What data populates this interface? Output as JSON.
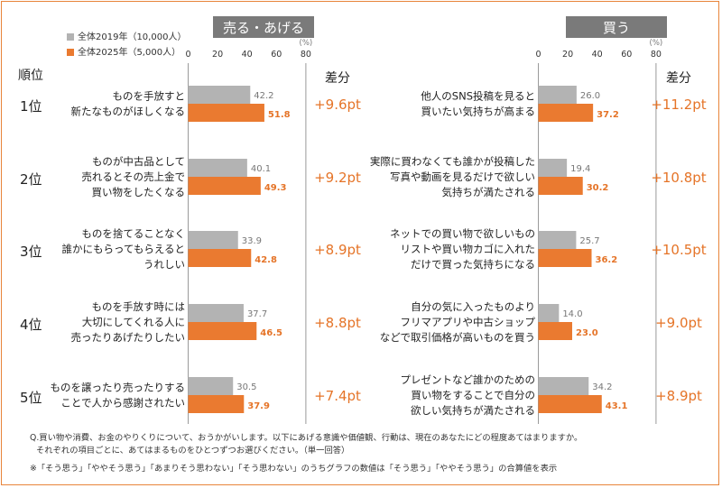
{
  "sections": [
    {
      "header": "売る・あげる",
      "axis_ticks": [
        "0",
        "20",
        "40",
        "60",
        "80"
      ],
      "unit": "(%)",
      "diff_header": "差分",
      "items": [
        {
          "label_lines": [
            "ものを手放すと",
            "新たなものがほしくなる"
          ],
          "gray": 42.2,
          "orange": 51.8,
          "diff": "+9.6pt"
        },
        {
          "label_lines": [
            "ものが中古品として",
            "売れるとその売上金で",
            "買い物をしたくなる"
          ],
          "gray": 40.1,
          "orange": 49.3,
          "diff": "+9.2pt"
        },
        {
          "label_lines": [
            "ものを捨てることなく",
            "誰かにもらってもらえると",
            "うれしい"
          ],
          "gray": 33.9,
          "orange": 42.8,
          "diff": "+8.9pt"
        },
        {
          "label_lines": [
            "ものを手放す時には",
            "大切にしてくれる人に",
            "売ったりあげたりしたい"
          ],
          "gray": 37.7,
          "orange": 46.5,
          "diff": "+8.8pt"
        },
        {
          "label_lines": [
            "ものを譲ったり売ったりする",
            "ことで人から感謝されたい"
          ],
          "gray": 30.5,
          "orange": 37.9,
          "diff": "+7.4pt"
        }
      ]
    },
    {
      "header": "買う",
      "axis_ticks": [
        "0",
        "20",
        "40",
        "60",
        "80"
      ],
      "unit": "(%)",
      "diff_header": "差分",
      "items": [
        {
          "label_lines": [
            "他人のSNS投稿を見ると",
            "買いたい気持ちが高まる"
          ],
          "gray": 26.0,
          "orange": 37.2,
          "diff": "+11.2pt"
        },
        {
          "label_lines": [
            "実際に買わなくても誰かが投稿した",
            "写真や動画を見るだけで欲しい",
            "気持ちが満たされる"
          ],
          "gray": 19.4,
          "orange": 30.2,
          "diff": "+10.8pt"
        },
        {
          "label_lines": [
            "ネットでの買い物で欲しいもの",
            "リストや買い物カゴに入れた",
            "だけで買った気持ちになる"
          ],
          "gray": 25.7,
          "orange": 36.2,
          "diff": "+10.5pt"
        },
        {
          "label_lines": [
            "自分の気に入ったものより",
            "フリマアプリや中古ショップ",
            "などで取引価格が高いものを買う"
          ],
          "gray": 14.0,
          "orange": 23.0,
          "diff": "+9.0pt"
        },
        {
          "label_lines": [
            "プレゼントなど誰かのための",
            "買い物をすることで自分の",
            "欲しい気持ちが満たされる"
          ],
          "gray": 34.2,
          "orange": 43.1,
          "diff": "+8.9pt"
        }
      ]
    }
  ],
  "legend": [
    {
      "name": "全体2019年（10,000人）",
      "color": "#b3b3b3"
    },
    {
      "name": "全体2025年（5,000人）",
      "color": "#ea7a30"
    }
  ],
  "rank_header": "順位",
  "ranks": [
    "1位",
    "2位",
    "3位",
    "4位",
    "5位"
  ],
  "footnotes": [
    "Q.買い物や消費、お金のやりくりについて、おうかがいします。以下にあげる意識や価値観、行動は、現在のあなたにどの程度あてはまりますか。",
    "それぞれの項目ごとに、あてはまるものをひとつずつお選びください。（単一回答）",
    "※「そう思う」「ややそう思う」「あまりそう思わない」「そう思わない」のうちグラフの数値は「そう思う」「ややそう思う」の合算値を表示"
  ],
  "colors": {
    "gray": "#b3b3b3",
    "orange": "#ea7a30",
    "header_bg": "#7a7a7a",
    "gray_text": "#777777",
    "orange_text": "#e57428",
    "frame": "#e8843a"
  },
  "chart_data": [
    {
      "type": "bar",
      "title": "売る・あげる",
      "ylabel": "(%)",
      "categories": [
        "ものを手放すと新たなものがほしくなる",
        "ものが中古品として売れるとその売上金で買い物をしたくなる",
        "ものを捨てることなく誰かにもらってもらえるとうれしい",
        "ものを手放す時には大切にしてくれる人に売ったりあげたりしたい",
        "ものを譲ったり売ったりすることで人から感謝されたい"
      ],
      "series": [
        {
          "name": "全体2019年（10,000人）",
          "values": [
            42.2,
            40.1,
            33.9,
            37.7,
            30.5
          ]
        },
        {
          "name": "全体2025年（5,000人）",
          "values": [
            51.8,
            49.3,
            42.8,
            46.5,
            37.9
          ]
        }
      ],
      "xlim": [
        0,
        80
      ]
    },
    {
      "type": "bar",
      "title": "買う",
      "ylabel": "(%)",
      "categories": [
        "他人のSNS投稿を見ると買いたい気持ちが高まる",
        "実際に買わなくても誰かが投稿した写真や動画を見るだけで欲しい気持ちが満たされる",
        "ネットでの買い物で欲しいものリストや買い物カゴに入れただけで買った気持ちになる",
        "自分の気に入ったものよりフリマアプリや中古ショップなどで取引価格が高いものを買う",
        "プレゼントなど誰かのための買い物をすることで自分の欲しい気持ちが満たされる"
      ],
      "series": [
        {
          "name": "全体2019年（10,000人）",
          "values": [
            26.0,
            19.4,
            25.7,
            14.0,
            34.2
          ]
        },
        {
          "name": "全体2025年（5,000人）",
          "values": [
            37.2,
            30.2,
            36.2,
            23.0,
            43.1
          ]
        }
      ],
      "xlim": [
        0,
        80
      ]
    }
  ]
}
